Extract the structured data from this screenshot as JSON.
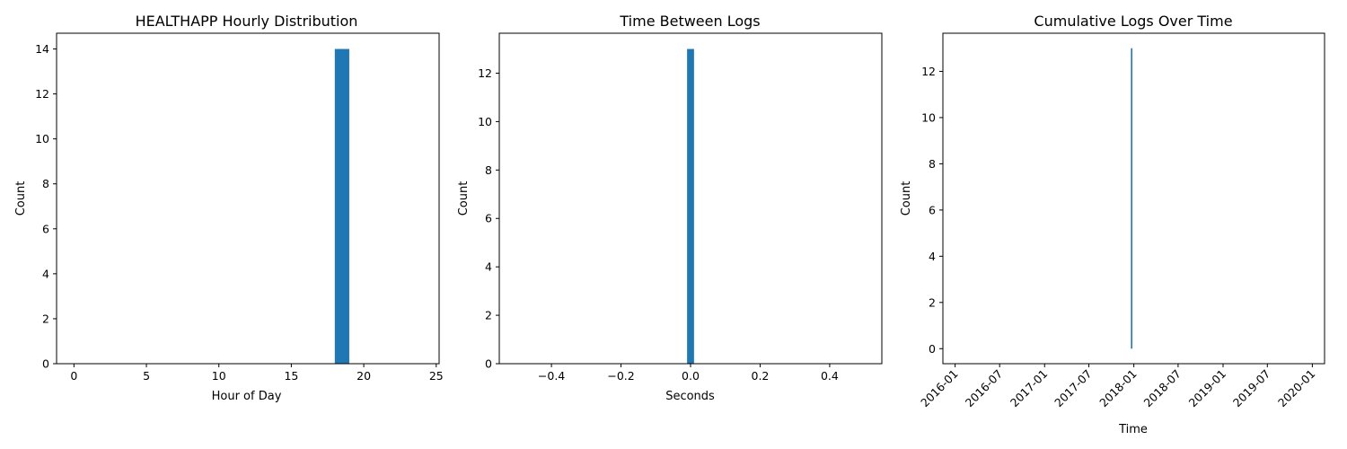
{
  "colors": {
    "bar": "#1f77b4",
    "axes": "#000000",
    "background": "#ffffff"
  },
  "chart_data": [
    {
      "type": "bar",
      "title": "HEALTHAPP Hourly Distribution",
      "xlabel": "Hour of Day",
      "ylabel": "Count",
      "xlim": [
        -1.2,
        25.2
      ],
      "ylim": [
        0,
        14.7
      ],
      "xticks": [
        0,
        5,
        10,
        15,
        20,
        25
      ],
      "yticks": [
        0,
        2,
        4,
        6,
        8,
        10,
        12,
        14
      ],
      "bins": [
        {
          "x0": 18,
          "x1": 19,
          "count": 14
        }
      ]
    },
    {
      "type": "bar",
      "title": "Time Between Logs",
      "xlabel": "Seconds",
      "ylabel": "Count",
      "xlim": [
        -0.55,
        0.55
      ],
      "ylim": [
        0,
        13.65
      ],
      "xticks": [
        -0.4,
        -0.2,
        0.0,
        0.2,
        0.4
      ],
      "xtick_labels": [
        "−0.4",
        "−0.2",
        "0.0",
        "0.2",
        "0.4"
      ],
      "yticks": [
        0,
        2,
        4,
        6,
        8,
        10,
        12
      ],
      "bins": [
        {
          "x0": -0.01,
          "x1": 0.01,
          "count": 13
        }
      ]
    },
    {
      "type": "line",
      "title": "Cumulative Logs Over Time",
      "xlabel": "Time",
      "ylabel": "Count",
      "x_axis_type": "date",
      "xlim": [
        "2015-11-12",
        "2020-02-20"
      ],
      "ylim": [
        -0.65,
        13.65
      ],
      "xticks": [
        "2016-01",
        "2016-07",
        "2017-01",
        "2017-07",
        "2018-01",
        "2018-07",
        "2019-01",
        "2019-07",
        "2020-01"
      ],
      "yticks": [
        0,
        2,
        4,
        6,
        8,
        10,
        12
      ],
      "series": [
        {
          "x": [
            "2017-12-23",
            "2017-12-23"
          ],
          "y": [
            0,
            13
          ]
        }
      ]
    }
  ]
}
